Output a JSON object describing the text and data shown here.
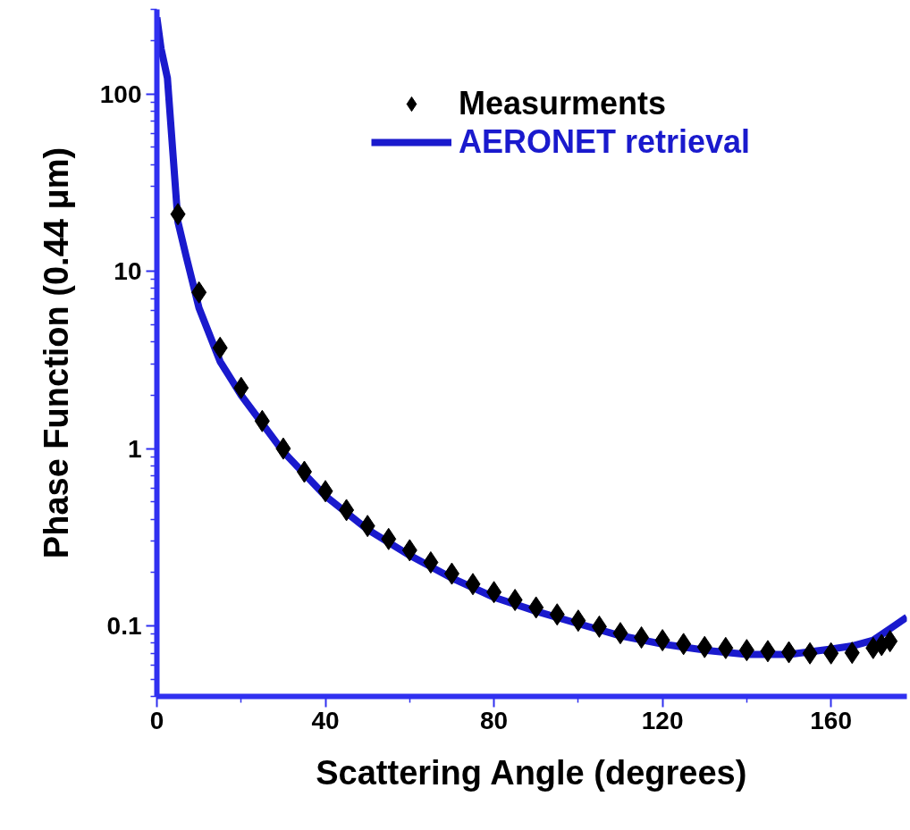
{
  "chart_data": {
    "type": "line",
    "xlabel": "Scattering Angle (degrees)",
    "ylabel": "Phase Function (0.44 μm)",
    "log": "y",
    "xlim": [
      0,
      178
    ],
    "ylim": [
      0.04,
      300
    ],
    "xticks": [
      0,
      40,
      80,
      120,
      160
    ],
    "yticks": [
      0.1,
      1,
      10,
      100
    ],
    "legend": "top right",
    "grid": false,
    "series": [
      {
        "name": "Measurments",
        "type": "scatter",
        "marker": "diamond",
        "color": "#000000",
        "x": [
          5,
          10,
          15,
          20,
          25,
          30,
          35,
          40,
          45,
          50,
          55,
          60,
          65,
          70,
          75,
          80,
          85,
          90,
          95,
          100,
          105,
          110,
          115,
          120,
          125,
          130,
          135,
          140,
          145,
          150,
          155,
          160,
          165,
          170,
          172,
          174
        ],
        "values": [
          21,
          7.6,
          3.7,
          2.2,
          1.43,
          1.0,
          0.74,
          0.575,
          0.45,
          0.366,
          0.309,
          0.267,
          0.228,
          0.197,
          0.172,
          0.155,
          0.14,
          0.127,
          0.116,
          0.107,
          0.099,
          0.091,
          0.086,
          0.083,
          0.079,
          0.076,
          0.075,
          0.073,
          0.072,
          0.071,
          0.07,
          0.07,
          0.0705,
          0.075,
          0.078,
          0.082
        ]
      },
      {
        "name": "AERONET retrieval",
        "line_style": "solid",
        "color": "#1a1acd",
        "x": [
          0,
          1,
          2.5,
          5,
          7,
          10,
          15,
          20,
          30,
          40,
          50,
          60,
          70,
          80,
          90,
          100,
          110,
          120,
          130,
          140,
          150,
          160,
          165,
          170,
          175,
          178
        ],
        "values": [
          270,
          180,
          123,
          19,
          12,
          6.2,
          3.1,
          2.0,
          0.96,
          0.54,
          0.35,
          0.25,
          0.186,
          0.145,
          0.121,
          0.103,
          0.088,
          0.079,
          0.073,
          0.069,
          0.069,
          0.074,
          0.077,
          0.083,
          0.1,
          0.112
        ]
      }
    ]
  }
}
